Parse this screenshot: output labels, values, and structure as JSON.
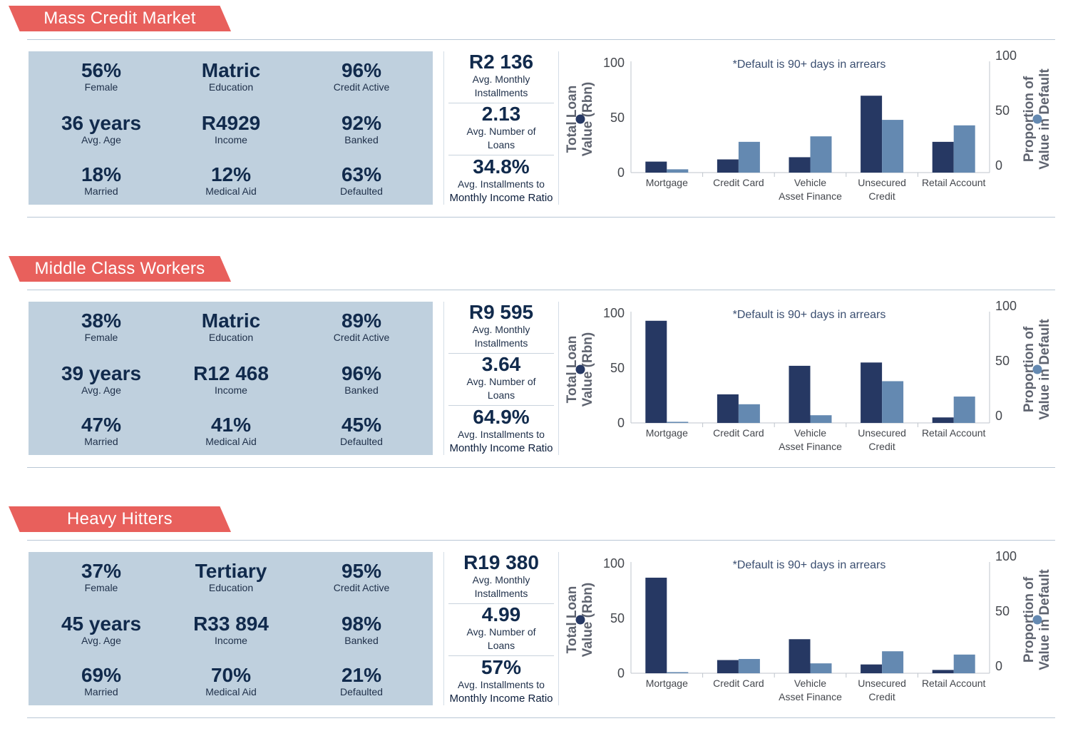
{
  "colors": {
    "banner": "#e8605c",
    "total_loan": "#263863",
    "default_prop": "#6489b1",
    "stats_bg": "#bfd0de"
  },
  "footnote": "*Default is 90+ days in arrears",
  "left_axis_title": "Total Loan Value (Rbn)",
  "right_axis_title": "Proportion of Value in Default",
  "left_axis_ticks": [
    "100",
    "50",
    "0"
  ],
  "right_axis_ticks": [
    "100",
    "50",
    "0"
  ],
  "sections": [
    {
      "title": "Mass Credit Market",
      "stats": [
        {
          "value": "56%",
          "label": "Female"
        },
        {
          "value": "Matric",
          "label": "Education"
        },
        {
          "value": "96%",
          "label": "Credit Active"
        },
        {
          "value": "36 years",
          "label": "Avg. Age"
        },
        {
          "value": "R4929",
          "label": "Income"
        },
        {
          "value": "92%",
          "label": "Banked"
        },
        {
          "value": "18%",
          "label": "Married"
        },
        {
          "value": "12%",
          "label": "Medical Aid"
        },
        {
          "value": "63%",
          "label": "Defaulted"
        }
      ],
      "metrics": [
        {
          "value": "R2 136",
          "label1": "Avg. Monthly",
          "label2": "Installments"
        },
        {
          "value": "2.13",
          "label1": "Avg. Number of",
          "label2": "Loans"
        },
        {
          "value": "34.8%",
          "label1": "Avg. Installments to",
          "label2": "Monthly Income Ratio"
        }
      ]
    },
    {
      "title": "Middle Class Workers",
      "stats": [
        {
          "value": "38%",
          "label": "Female"
        },
        {
          "value": "Matric",
          "label": "Education"
        },
        {
          "value": "89%",
          "label": "Credit Active"
        },
        {
          "value": "39 years",
          "label": "Avg. Age"
        },
        {
          "value": "R12 468",
          "label": "Income"
        },
        {
          "value": "96%",
          "label": "Banked"
        },
        {
          "value": "47%",
          "label": "Married"
        },
        {
          "value": "41%",
          "label": "Medical Aid"
        },
        {
          "value": "45%",
          "label": "Defaulted"
        }
      ],
      "metrics": [
        {
          "value": "R9 595",
          "label1": "Avg. Monthly",
          "label2": "Installments"
        },
        {
          "value": "3.64",
          "label1": "Avg. Number of",
          "label2": "Loans"
        },
        {
          "value": "64.9%",
          "label1": "Avg. Installments to",
          "label2": "Monthly Income Ratio"
        }
      ]
    },
    {
      "title": "Heavy Hitters",
      "stats": [
        {
          "value": "37%",
          "label": "Female"
        },
        {
          "value": "Tertiary",
          "label": "Education"
        },
        {
          "value": "95%",
          "label": "Credit Active"
        },
        {
          "value": "45 years",
          "label": "Avg. Age"
        },
        {
          "value": "R33 894",
          "label": "Income"
        },
        {
          "value": "98%",
          "label": "Banked"
        },
        {
          "value": "69%",
          "label": "Married"
        },
        {
          "value": "70%",
          "label": "Medical Aid"
        },
        {
          "value": "21%",
          "label": "Defaulted"
        }
      ],
      "metrics": [
        {
          "value": "R19 380",
          "label1": "Avg. Monthly",
          "label2": "Installments"
        },
        {
          "value": "4.99",
          "label1": "Avg. Number of",
          "label2": "Loans"
        },
        {
          "value": "57%",
          "label1": "Avg. Installments to",
          "label2": "Monthly Income Ratio"
        }
      ]
    }
  ],
  "chart_data": [
    {
      "type": "bar",
      "categories": [
        [
          "Mortgage"
        ],
        [
          "Credit Card"
        ],
        [
          "Vehicle",
          "Asset Finance"
        ],
        [
          "Unsecured",
          "Credit"
        ],
        [
          "Retail Account"
        ]
      ],
      "series": [
        {
          "name": "Total Loan Value (Rbn)",
          "axis": "left",
          "values": [
            10,
            12,
            14,
            70,
            28
          ]
        },
        {
          "name": "Proportion of Value in Default",
          "axis": "right",
          "values": [
            3,
            28,
            33,
            48,
            43
          ]
        }
      ],
      "ylim": [
        0,
        100
      ],
      "y2lim": [
        0,
        100
      ]
    },
    {
      "type": "bar",
      "categories": [
        [
          "Mortgage"
        ],
        [
          "Credit Card"
        ],
        [
          "Vehicle",
          "Asset Finance"
        ],
        [
          "Unsecured",
          "Credit"
        ],
        [
          "Retail Account"
        ]
      ],
      "series": [
        {
          "name": "Total Loan Value (Rbn)",
          "axis": "left",
          "values": [
            93,
            26,
            52,
            55,
            5
          ]
        },
        {
          "name": "Proportion of Value in Default",
          "axis": "right",
          "values": [
            1,
            17,
            7,
            38,
            24
          ]
        }
      ],
      "ylim": [
        0,
        100
      ],
      "y2lim": [
        0,
        100
      ]
    },
    {
      "type": "bar",
      "categories": [
        [
          "Mortgage"
        ],
        [
          "Credit Card"
        ],
        [
          "Vehicle",
          "Asset Finance"
        ],
        [
          "Unsecured",
          "Credit"
        ],
        [
          "Retail Account"
        ]
      ],
      "series": [
        {
          "name": "Total Loan Value (Rbn)",
          "axis": "left",
          "values": [
            87,
            12,
            31,
            8,
            3
          ]
        },
        {
          "name": "Proportion of Value in Default",
          "axis": "right",
          "values": [
            1,
            13,
            9,
            20,
            17
          ]
        }
      ],
      "ylim": [
        0,
        100
      ],
      "y2lim": [
        0,
        100
      ]
    }
  ]
}
